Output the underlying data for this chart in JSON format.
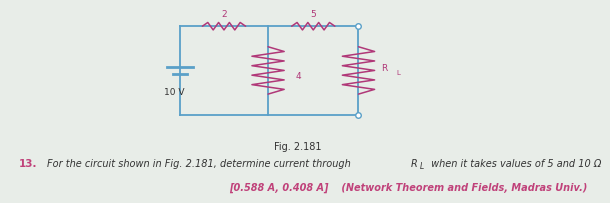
{
  "bg_outer": "#e8ede8",
  "bg_circuit": "#d8ede8",
  "bg_text": "#f5f0e8",
  "wire_color": "#5aa0c8",
  "resistor_color": "#b03878",
  "text_dark": "#333333",
  "text_magenta": "#c0427a",
  "fig_label": "Fig. 2.181",
  "question_num": "13.",
  "q_text1": "For the circuit shown in Fig. 2.181, determine current through ",
  "q_RL": "R",
  "q_RL_sub": "L",
  "q_text2": " when it takes values of 5 and 10 Ω",
  "ans_bracket": "[0.588 A, 0.408 A]",
  "ans_ref": " (Network Theorem and Fields, Madras Univ.)",
  "v_label": "10 V",
  "r2_label": "2",
  "r5_label": "5",
  "r4_label": "4",
  "rl_label": "R",
  "rl_sub": "L",
  "cl": 0.295,
  "cr": 0.605,
  "ct": 0.91,
  "cb": 0.2,
  "mx": 0.448
}
